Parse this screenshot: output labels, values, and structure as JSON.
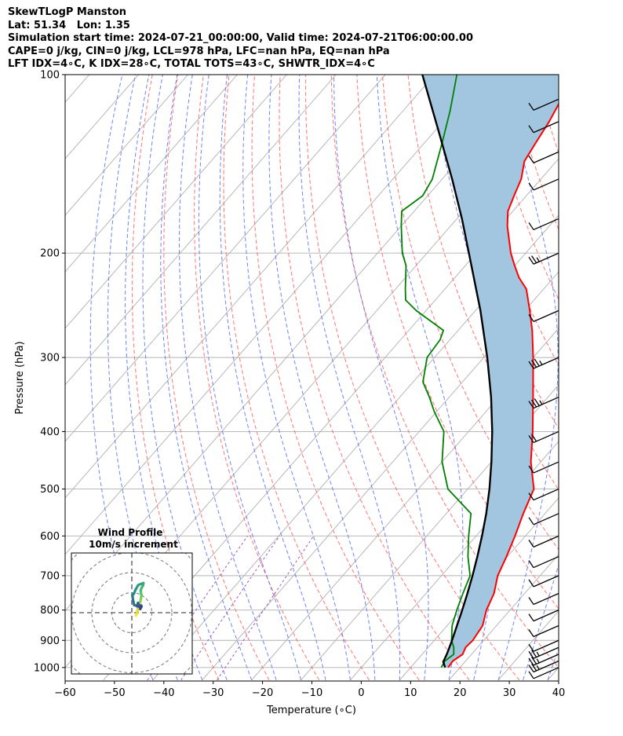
{
  "header": {
    "lines": [
      "SkewTLogP Manston",
      "Lat: 51.34   Lon: 1.35",
      "Simulation start time: 2024-07-21_00:00:00, Valid time: 2024-07-21T06:00:00.00",
      "CAPE=0 j/kg, CIN=0 j/kg, LCL=978 hPa, LFC=nan hPa, EQ=nan hPa",
      "LFT IDX=4∘C, K IDX=28∘C, TOTAL TOTS=43∘C, SHWTR_IDX=4∘C"
    ]
  },
  "chart_data": {
    "type": "line",
    "skew_t": true,
    "xlabel": "Temperature (∘C)",
    "ylabel": "Pressure (hPa)",
    "xlim": [
      -60,
      40
    ],
    "ylim": [
      1050,
      100
    ],
    "y_scale": "log",
    "x_ticks": [
      -60,
      -50,
      -40,
      -30,
      -20,
      -10,
      0,
      10,
      20,
      30,
      40
    ],
    "x_tick_labels": [
      "−60",
      "−50",
      "−40",
      "−30",
      "−20",
      "−10",
      "0",
      "10",
      "20",
      "30",
      "40"
    ],
    "y_ticks": [
      1000,
      900,
      800,
      700,
      600,
      500,
      400,
      300,
      200,
      100
    ],
    "y_tick_labels": [
      "1000",
      "900",
      "800",
      "700",
      "600",
      "500",
      "400",
      "300",
      "200",
      "100"
    ],
    "grid": true,
    "colors": {
      "temperature": "#ff0000",
      "dewpoint": "#008000",
      "parcel": "#000000",
      "cape_fill": "#a3c6e0",
      "dry_adiabat": "#ff6666",
      "moist_adiabat": "#5c6cf5",
      "mixing_ratio": "#9b59b6",
      "isotherm": "#aaaaaa"
    },
    "series": [
      {
        "role": "temperature",
        "points": [
          [
            1000,
            17.6
          ],
          [
            975,
            17.4
          ],
          [
            950,
            18.2
          ],
          [
            925,
            17.6
          ],
          [
            900,
            17.8
          ],
          [
            850,
            17.2
          ],
          [
            800,
            15.2
          ],
          [
            750,
            13.8
          ],
          [
            700,
            11.4
          ],
          [
            650,
            9.8
          ],
          [
            600,
            7.9
          ],
          [
            550,
            5.6
          ],
          [
            500,
            3.4
          ],
          [
            450,
            -2.0
          ],
          [
            400,
            -7.0
          ],
          [
            350,
            -13.0
          ],
          [
            300,
            -20.0
          ],
          [
            270,
            -25.0
          ],
          [
            250,
            -29.0
          ],
          [
            230,
            -33.5
          ],
          [
            220,
            -37.0
          ],
          [
            210,
            -40.0
          ],
          [
            200,
            -43.0
          ],
          [
            180,
            -48.5
          ],
          [
            170,
            -51.0
          ],
          [
            160,
            -52.5
          ],
          [
            150,
            -54.0
          ],
          [
            140,
            -56.5
          ],
          [
            130,
            -57.5
          ],
          [
            120,
            -58.5
          ],
          [
            110,
            -60.0
          ],
          [
            100,
            -61.0
          ]
        ]
      },
      {
        "role": "dewpoint",
        "points": [
          [
            1000,
            16.2
          ],
          [
            975,
            15.8
          ],
          [
            950,
            16.4
          ],
          [
            925,
            15.2
          ],
          [
            900,
            13.5
          ],
          [
            850,
            11.0
          ],
          [
            800,
            9.2
          ],
          [
            750,
            7.5
          ],
          [
            700,
            5.8
          ],
          [
            650,
            2.0
          ],
          [
            600,
            -1.5
          ],
          [
            550,
            -5.0
          ],
          [
            500,
            -14.0
          ],
          [
            450,
            -20.0
          ],
          [
            400,
            -25.0
          ],
          [
            370,
            -30.5
          ],
          [
            350,
            -34.0
          ],
          [
            330,
            -38.0
          ],
          [
            300,
            -41.5
          ],
          [
            280,
            -42.0
          ],
          [
            270,
            -43.0
          ],
          [
            250,
            -52.0
          ],
          [
            240,
            -56.0
          ],
          [
            230,
            -58.0
          ],
          [
            210,
            -62.0
          ],
          [
            200,
            -65.0
          ],
          [
            180,
            -70.0
          ],
          [
            170,
            -72.5
          ],
          [
            160,
            -71.0
          ],
          [
            150,
            -72.0
          ],
          [
            130,
            -76.5
          ],
          [
            115,
            -80.5
          ],
          [
            100,
            -85.5
          ]
        ]
      },
      {
        "role": "parcel",
        "points": [
          [
            1000,
            17.0
          ],
          [
            978,
            15.6
          ],
          [
            950,
            15.0
          ],
          [
            900,
            13.6
          ],
          [
            850,
            12.0
          ],
          [
            800,
            10.3
          ],
          [
            750,
            8.4
          ],
          [
            700,
            6.3
          ],
          [
            650,
            3.9
          ],
          [
            600,
            1.2
          ],
          [
            550,
            -1.9
          ],
          [
            500,
            -5.6
          ],
          [
            450,
            -10.0
          ],
          [
            400,
            -15.2
          ],
          [
            350,
            -21.5
          ],
          [
            300,
            -29.3
          ],
          [
            250,
            -39.0
          ],
          [
            200,
            -51.5
          ],
          [
            175,
            -59.0
          ],
          [
            150,
            -68.0
          ],
          [
            125,
            -79.0
          ],
          [
            100,
            -92.5
          ]
        ]
      }
    ],
    "wind_barbs": [
      {
        "p": 1000,
        "speed": 10
      },
      {
        "p": 975,
        "speed": 15
      },
      {
        "p": 950,
        "speed": 15
      },
      {
        "p": 925,
        "speed": 15
      },
      {
        "p": 900,
        "speed": 10
      },
      {
        "p": 850,
        "speed": 10
      },
      {
        "p": 800,
        "speed": 10
      },
      {
        "p": 750,
        "speed": 10
      },
      {
        "p": 700,
        "speed": 10
      },
      {
        "p": 650,
        "speed": 10
      },
      {
        "p": 600,
        "speed": 10
      },
      {
        "p": 550,
        "speed": 10
      },
      {
        "p": 500,
        "speed": 10
      },
      {
        "p": 450,
        "speed": 10
      },
      {
        "p": 400,
        "speed": 20
      },
      {
        "p": 350,
        "speed": 25
      },
      {
        "p": 300,
        "speed": 25
      },
      {
        "p": 250,
        "speed": 10
      },
      {
        "p": 200,
        "speed": 15
      },
      {
        "p": 175,
        "speed": 10
      },
      {
        "p": 150,
        "speed": 10
      },
      {
        "p": 135,
        "speed": 10
      },
      {
        "p": 120,
        "speed": 10
      },
      {
        "p": 110,
        "speed": 10
      }
    ],
    "hodograph": {
      "title_line1": "Wind Profile",
      "title_line2": "10m/s increment",
      "ring_count": 3,
      "points_uv": [
        [
          2.0,
          -1.5
        ],
        [
          2.5,
          -0.5
        ],
        [
          2.8,
          0.5
        ],
        [
          3.0,
          1.8
        ],
        [
          3.2,
          3.0
        ],
        [
          3.6,
          4.2
        ],
        [
          4.3,
          5.6
        ],
        [
          4.5,
          6.8
        ],
        [
          4.7,
          7.8
        ],
        [
          4.8,
          8.8
        ],
        [
          4.6,
          9.8
        ],
        [
          4.4,
          11.0
        ],
        [
          4.8,
          12.2
        ],
        [
          5.6,
          13.6
        ],
        [
          5.8,
          14.8
        ],
        [
          4.5,
          14.3
        ],
        [
          3.2,
          13.8
        ],
        [
          1.9,
          11.5
        ],
        [
          1.0,
          9.4
        ],
        [
          0.3,
          8.7
        ],
        [
          0.4,
          7.9
        ],
        [
          0.6,
          6.3
        ],
        [
          1.2,
          3.8
        ],
        [
          2.6,
          3.4
        ],
        [
          4.0,
          2.7
        ],
        [
          3.1,
          4.9
        ],
        [
          2.7,
          3.2
        ],
        [
          4.7,
          3.6
        ],
        [
          4.8,
          3.0
        ],
        [
          4.2,
          1.8
        ]
      ]
    }
  }
}
